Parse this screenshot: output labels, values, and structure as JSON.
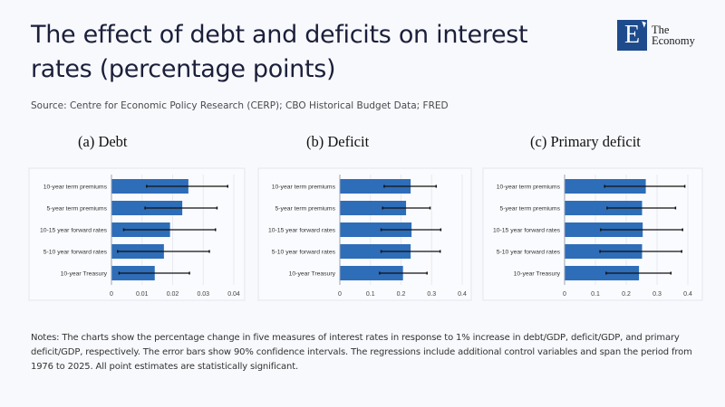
{
  "header": {
    "title": "The effect of debt and deficits on interest rates (percentage points)",
    "source": "Source: Centre for Economic Policy Research (CERP); CBO Historical Budget Data; FRED"
  },
  "logo": {
    "letter": "E",
    "line1": "The",
    "line2": "Economy",
    "color": "#1e4b8c"
  },
  "notes": "Notes: The charts show the percentage change in five measures of interest rates in response to 1% increase in debt/GDP, deficit/GDP, and primary deficit/GDP, respectively. The error bars show 90% confidence intervals. The regressions include additional control variables and span the period from 1976 to 2025. All point estimates are statistically significant.",
  "colors": {
    "bar": "#2e6db8",
    "error_bar": "#111111"
  },
  "chart_data": [
    {
      "type": "bar",
      "orientation": "horizontal",
      "title": "(a)  Debt",
      "categories": [
        "10-year term premiums",
        "5-year term premiums",
        "10-15 year forward rates",
        "5-10 year forward rates",
        "10-year Treasury"
      ],
      "values": [
        0.025,
        0.023,
        0.019,
        0.017,
        0.014
      ],
      "ci_low": [
        0.0115,
        0.011,
        0.004,
        0.002,
        0.0025
      ],
      "ci_high": [
        0.038,
        0.0345,
        0.034,
        0.032,
        0.0255
      ],
      "xlim": [
        0,
        0.04
      ],
      "xticks": [
        "0",
        "0.01",
        "0.02",
        "0.03",
        "0.04"
      ],
      "xtick_values": [
        0,
        0.01,
        0.02,
        0.03,
        0.04
      ],
      "xlabel": "",
      "ylabel": "",
      "grid": true
    },
    {
      "type": "bar",
      "orientation": "horizontal",
      "title": "(b)  Deficit",
      "categories": [
        "10-year term premiums",
        "5-year term premiums",
        "10-15 year forward rates",
        "5-10 year forward rates",
        "10-year Treasury"
      ],
      "values": [
        0.23,
        0.215,
        0.233,
        0.23,
        0.205
      ],
      "ci_low": [
        0.145,
        0.14,
        0.135,
        0.135,
        0.13
      ],
      "ci_high": [
        0.315,
        0.295,
        0.33,
        0.328,
        0.285
      ],
      "xlim": [
        0,
        0.4
      ],
      "xticks": [
        "0",
        "0.1",
        "0.2",
        "0.3",
        "0.4"
      ],
      "xtick_values": [
        0,
        0.1,
        0.2,
        0.3,
        0.4
      ],
      "xlabel": "",
      "ylabel": "",
      "grid": true
    },
    {
      "type": "bar",
      "orientation": "horizontal",
      "title": "(c)  Primary deficit",
      "categories": [
        "10-year term premiums",
        "5-year term premiums",
        "10-15 year forward rates",
        "5-10 year forward rates",
        "10-year Treasury"
      ],
      "values": [
        0.262,
        0.25,
        0.252,
        0.25,
        0.24
      ],
      "ci_low": [
        0.13,
        0.138,
        0.117,
        0.115,
        0.135
      ],
      "ci_high": [
        0.39,
        0.36,
        0.383,
        0.38,
        0.345
      ],
      "xlim": [
        0,
        0.4
      ],
      "xticks": [
        "0",
        "0.1",
        "0.2",
        "0.3",
        "0.4"
      ],
      "xtick_values": [
        0,
        0.1,
        0.2,
        0.3,
        0.4
      ],
      "xlabel": "",
      "ylabel": "",
      "grid": true
    }
  ]
}
